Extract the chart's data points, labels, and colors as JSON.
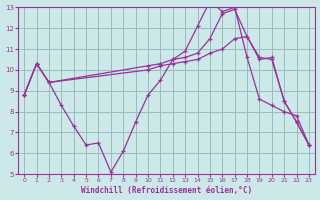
{
  "xlabel": "Windchill (Refroidissement éolien,°C)",
  "bg_color": "#cce8e8",
  "line_color": "#993399",
  "grid_color": "#99bbbb",
  "xlim": [
    -0.5,
    23.5
  ],
  "ylim": [
    5,
    13
  ],
  "xticks": [
    0,
    1,
    2,
    3,
    4,
    5,
    6,
    7,
    8,
    9,
    10,
    11,
    12,
    13,
    14,
    15,
    16,
    17,
    18,
    19,
    20,
    21,
    22,
    23
  ],
  "yticks": [
    5,
    6,
    7,
    8,
    9,
    10,
    11,
    12,
    13
  ],
  "line1_x": [
    0,
    1,
    2,
    3,
    4,
    5,
    6,
    7,
    8,
    9,
    10,
    11,
    12,
    13,
    14,
    15,
    16,
    17,
    18,
    19,
    20,
    21,
    22,
    23
  ],
  "line1_y": [
    8.8,
    10.3,
    9.4,
    8.3,
    7.3,
    6.4,
    6.5,
    5.1,
    6.1,
    7.5,
    8.8,
    9.5,
    10.5,
    10.9,
    12.1,
    13.3,
    12.8,
    13.0,
    10.6,
    8.6,
    8.3,
    8.0,
    7.8,
    6.4
  ],
  "line2_x": [
    0,
    1,
    2,
    10,
    11,
    12,
    13,
    14,
    15,
    16,
    17,
    18,
    19,
    20,
    21,
    22,
    23
  ],
  "line2_y": [
    8.8,
    10.3,
    9.4,
    10.2,
    10.3,
    10.5,
    10.6,
    10.8,
    11.5,
    12.7,
    12.9,
    11.6,
    10.5,
    10.6,
    8.5,
    7.5,
    6.4
  ],
  "line3_x": [
    0,
    1,
    2,
    10,
    11,
    12,
    13,
    14,
    15,
    16,
    17,
    18,
    19,
    20,
    21,
    22,
    23
  ],
  "line3_y": [
    8.8,
    10.3,
    9.4,
    10.0,
    10.2,
    10.3,
    10.4,
    10.5,
    10.8,
    11.0,
    11.5,
    11.6,
    10.6,
    10.5,
    8.5,
    7.5,
    6.4
  ]
}
